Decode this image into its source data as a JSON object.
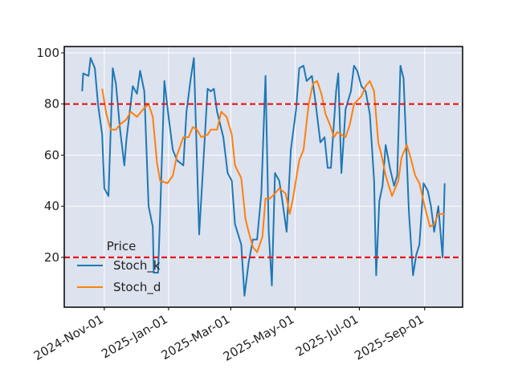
{
  "chart_data": {
    "type": "line",
    "background": "#dce2ee",
    "grid": true,
    "legend_title": "Price",
    "legend": "lower left",
    "xlim": [
      "2024-09-24",
      "2025-10-07"
    ],
    "xticks": [
      {
        "value": "2024-11-01",
        "label": "2024-Nov-01"
      },
      {
        "value": "2025-01-01",
        "label": "2025-Jan-01"
      },
      {
        "value": "2025-03-01",
        "label": "2025-Mar-01"
      },
      {
        "value": "2025-05-01",
        "label": "2025-May-01"
      },
      {
        "value": "2025-07-01",
        "label": "2025-Jul-01"
      },
      {
        "value": "2025-09-01",
        "label": "2025-Sep-01"
      }
    ],
    "ylim": [
      0.5,
      102.5
    ],
    "yticks": [
      20,
      40,
      60,
      80,
      100
    ],
    "hlines": [
      {
        "value": 80,
        "color": "#e8141a"
      },
      {
        "value": 20,
        "color": "#e8141a"
      }
    ],
    "series": [
      {
        "name": "Stoch_k",
        "color": "#1f77b4",
        "x": [
          "2024-10-11",
          "2024-10-12",
          "2024-10-17",
          "2024-10-19",
          "2024-10-23",
          "2024-10-26",
          "2024-10-30",
          "2024-11-01",
          "2024-11-05",
          "2024-11-09",
          "2024-11-12",
          "2024-11-16",
          "2024-11-20",
          "2024-11-22",
          "2024-11-28",
          "2024-12-02",
          "2024-12-05",
          "2024-12-09",
          "2024-12-13",
          "2024-12-17",
          "2024-12-18",
          "2024-12-22",
          "2024-12-24",
          "2024-12-28",
          "2025-01-01",
          "2025-01-05",
          "2025-01-09",
          "2025-01-15",
          "2025-01-18",
          "2025-01-22",
          "2025-01-25",
          "2025-01-30",
          "2025-02-02",
          "2025-02-07",
          "2025-02-10",
          "2025-02-13",
          "2025-02-16",
          "2025-02-22",
          "2025-02-26",
          "2025-03-02",
          "2025-03-05",
          "2025-03-11",
          "2025-03-14",
          "2025-03-18",
          "2025-03-22",
          "2025-03-26",
          "2025-03-30",
          "2025-04-03",
          "2025-04-06",
          "2025-04-09",
          "2025-04-12",
          "2025-04-16",
          "2025-04-19",
          "2025-04-23",
          "2025-04-27",
          "2025-05-02",
          "2025-05-05",
          "2025-05-09",
          "2025-05-12",
          "2025-05-17",
          "2025-05-20",
          "2025-05-25",
          "2025-05-29",
          "2025-06-01",
          "2025-06-04",
          "2025-06-09",
          "2025-06-11",
          "2025-06-14",
          "2025-06-18",
          "2025-06-23",
          "2025-06-26",
          "2025-06-29",
          "2025-07-03",
          "2025-07-07",
          "2025-07-11",
          "2025-07-15",
          "2025-07-17",
          "2025-07-20",
          "2025-07-23",
          "2025-07-26",
          "2025-07-30",
          "2025-08-03",
          "2025-08-06",
          "2025-08-09",
          "2025-08-12",
          "2025-08-17",
          "2025-08-21",
          "2025-08-24",
          "2025-08-27",
          "2025-08-31",
          "2025-09-04",
          "2025-09-07",
          "2025-09-10",
          "2025-09-14",
          "2025-09-18",
          "2025-09-20"
        ],
        "values": [
          85,
          92,
          91,
          98,
          94,
          80,
          68,
          47,
          44,
          94,
          88,
          70,
          56,
          66,
          87,
          84,
          93,
          85,
          40,
          32,
          14,
          14,
          37,
          89,
          75,
          62,
          58,
          56,
          77,
          90,
          98,
          29,
          50,
          86,
          85,
          86,
          77,
          67,
          53,
          50,
          33,
          25,
          5,
          18,
          27,
          27,
          45,
          91,
          30,
          9,
          53,
          50,
          42,
          30,
          62,
          78,
          94,
          95,
          89,
          91,
          82,
          65,
          67,
          55,
          55,
          85,
          92,
          53,
          78,
          85,
          95,
          93,
          87,
          85,
          76,
          50,
          13,
          42,
          48,
          64,
          55,
          48,
          52,
          95,
          90,
          38,
          13,
          21,
          25,
          49,
          46,
          40,
          30,
          40,
          20,
          49
        ]
      },
      {
        "name": "Stoch_d",
        "color": "#ff7f0e",
        "x": [
          "2024-10-30",
          "2024-11-03",
          "2024-11-07",
          "2024-11-12",
          "2024-11-16",
          "2024-11-22",
          "2024-11-26",
          "2024-12-02",
          "2024-12-08",
          "2024-12-13",
          "2024-12-17",
          "2024-12-21",
          "2024-12-24",
          "2024-12-31",
          "2025-01-05",
          "2025-01-09",
          "2025-01-15",
          "2025-01-20",
          "2025-01-24",
          "2025-01-28",
          "2025-02-01",
          "2025-02-07",
          "2025-02-10",
          "2025-02-16",
          "2025-02-20",
          "2025-02-25",
          "2025-03-02",
          "2025-03-05",
          "2025-03-11",
          "2025-03-15",
          "2025-03-18",
          "2025-03-22",
          "2025-03-26",
          "2025-03-31",
          "2025-04-03",
          "2025-04-07",
          "2025-04-12",
          "2025-04-16",
          "2025-04-22",
          "2025-04-26",
          "2025-04-29",
          "2025-05-05",
          "2025-05-09",
          "2025-05-14",
          "2025-05-18",
          "2025-05-22",
          "2025-05-26",
          "2025-05-30",
          "2025-06-03",
          "2025-06-07",
          "2025-06-10",
          "2025-06-14",
          "2025-06-18",
          "2025-06-22",
          "2025-06-26",
          "2025-07-03",
          "2025-07-07",
          "2025-07-11",
          "2025-07-15",
          "2025-07-19",
          "2025-07-22",
          "2025-07-26",
          "2025-08-01",
          "2025-08-07",
          "2025-08-10",
          "2025-08-15",
          "2025-08-18",
          "2025-08-23",
          "2025-08-27",
          "2025-09-01",
          "2025-09-06",
          "2025-09-10",
          "2025-09-14",
          "2025-09-20"
        ],
        "values": [
          86,
          76,
          70,
          70,
          72,
          74,
          77,
          75,
          78,
          80,
          75,
          57,
          50,
          49,
          52,
          60,
          67,
          67,
          71,
          70,
          67,
          68,
          70,
          70,
          77,
          75,
          68,
          56,
          51,
          35,
          30,
          24,
          22,
          28,
          43,
          43,
          45,
          47,
          45,
          37,
          43,
          58,
          62,
          80,
          88,
          89,
          84,
          76,
          72,
          67,
          69,
          68,
          67,
          72,
          80,
          83,
          87,
          89,
          85,
          65,
          60,
          52,
          44,
          50,
          59,
          64,
          60,
          52,
          49,
          40,
          32,
          33,
          37,
          37
        ]
      }
    ]
  }
}
